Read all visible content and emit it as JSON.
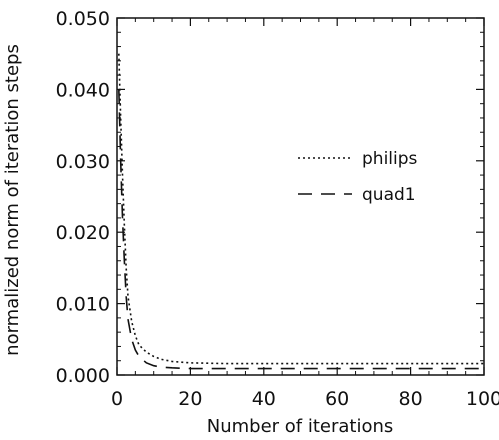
{
  "chart_data": {
    "type": "line",
    "title": "",
    "xlabel": "Number of iterations",
    "ylabel": "normalized norm of iteration steps",
    "xlim": [
      0,
      100
    ],
    "ylim": [
      0,
      0.05
    ],
    "xticks": [
      "0",
      "20",
      "40",
      "60",
      "80",
      "100"
    ],
    "yticks": [
      "0.000",
      "0.010",
      "0.020",
      "0.030",
      "0.040",
      "0.050"
    ],
    "grid": false,
    "legend_position": "right-middle",
    "series": [
      {
        "name": "philips",
        "style": "dotted",
        "x": [
          0.5,
          1,
          1.5,
          2,
          2.5,
          3,
          4,
          5,
          6,
          8,
          10,
          12,
          15,
          20,
          30,
          50,
          100
        ],
        "y": [
          0.045,
          0.036,
          0.028,
          0.021,
          0.015,
          0.011,
          0.0075,
          0.0055,
          0.0042,
          0.0032,
          0.0026,
          0.0022,
          0.0019,
          0.0017,
          0.0016,
          0.0016,
          0.0016
        ]
      },
      {
        "name": "quad1",
        "style": "dashed",
        "x": [
          0.5,
          1,
          1.5,
          2,
          2.5,
          3,
          4,
          5,
          6,
          8,
          10,
          12,
          15,
          20,
          30,
          50,
          100
        ],
        "y": [
          0.04,
          0.03,
          0.022,
          0.016,
          0.011,
          0.0078,
          0.005,
          0.0035,
          0.0026,
          0.0017,
          0.0013,
          0.0011,
          0.001,
          0.0009,
          0.0009,
          0.0009,
          0.0009
        ]
      }
    ]
  }
}
